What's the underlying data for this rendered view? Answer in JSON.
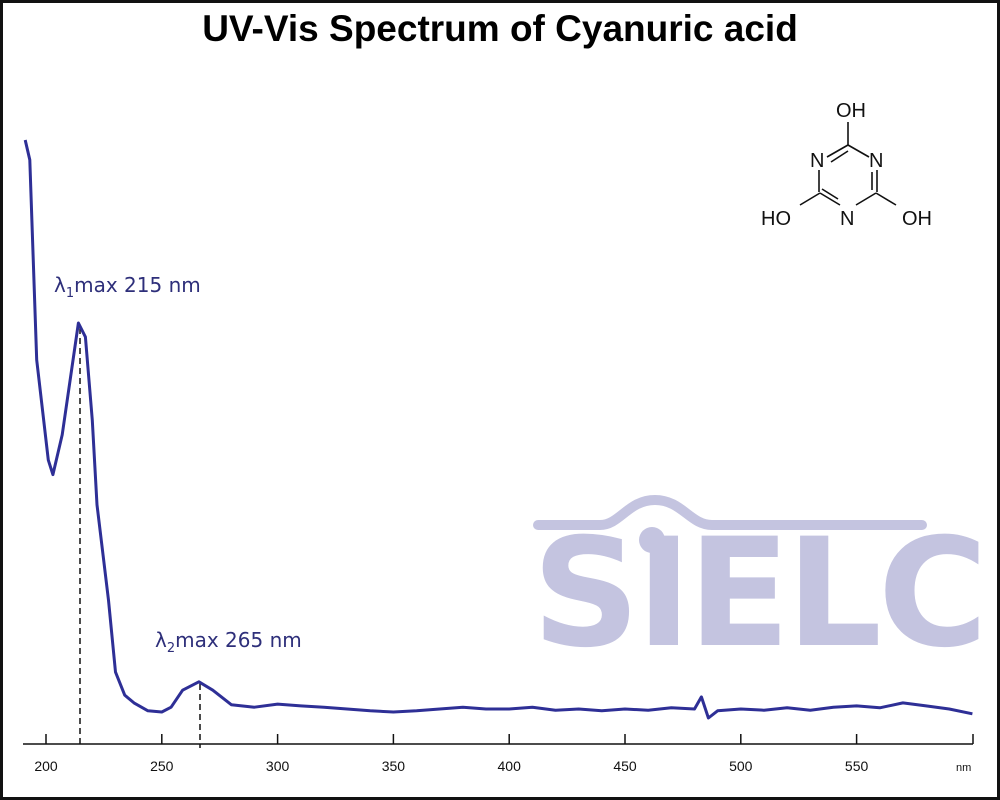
{
  "title": "UV-Vis Spectrum of Cyanuric acid",
  "colors": {
    "line": "#2e2f96",
    "annotation": "#2e2f7a",
    "watermark": "#c4c4e0",
    "axis": "#111111",
    "border": "#111111"
  },
  "x_axis": {
    "ticks": [
      "200",
      "250",
      "300",
      "350",
      "400",
      "450",
      "500",
      "550"
    ],
    "unit": "nm"
  },
  "annotations": {
    "peak1": {
      "lambda": "λ",
      "sub": "1",
      "text": "max  215 nm"
    },
    "peak2": {
      "lambda": "λ",
      "sub": "2",
      "text": "max  265 nm"
    }
  },
  "structure": {
    "name": "Cyanuric acid",
    "labels": {
      "oh_top": "OH",
      "oh_left": "HO",
      "oh_right": "OH",
      "n_left": "N",
      "n_right": "N",
      "n_bottom": "N"
    }
  },
  "watermark": {
    "text": "SIELC"
  },
  "chart_data": {
    "type": "line",
    "title": "UV-Vis Spectrum of Cyanuric acid",
    "xlabel": "nm",
    "ylabel": "",
    "xlim": [
      190,
      600
    ],
    "ylim": [
      0,
      1.0
    ],
    "x_ticks": [
      200,
      250,
      300,
      350,
      400,
      450,
      500,
      550
    ],
    "grid": false,
    "legend": null,
    "annotations": [
      {
        "text": "λ1max 215 nm",
        "x": 215
      },
      {
        "text": "λ2max 265 nm",
        "x": 265
      }
    ],
    "series": [
      {
        "name": "Cyanuric acid",
        "x": [
          191,
          193,
          196,
          201,
          203,
          207,
          214,
          217,
          220,
          222,
          227,
          230,
          234,
          238,
          244,
          250,
          254,
          259,
          266,
          272,
          280,
          290,
          300,
          310,
          320,
          330,
          340,
          350,
          360,
          370,
          380,
          390,
          400,
          410,
          420,
          430,
          440,
          450,
          460,
          470,
          480,
          483,
          486,
          490,
          500,
          510,
          520,
          530,
          540,
          550,
          560,
          570,
          580,
          590,
          600
        ],
        "values": [
          1.0,
          0.967,
          0.636,
          0.47,
          0.446,
          0.512,
          0.697,
          0.674,
          0.536,
          0.396,
          0.238,
          0.119,
          0.081,
          0.068,
          0.055,
          0.053,
          0.061,
          0.089,
          0.103,
          0.089,
          0.065,
          0.061,
          0.066,
          0.063,
          0.061,
          0.058,
          0.055,
          0.053,
          0.055,
          0.058,
          0.061,
          0.058,
          0.058,
          0.061,
          0.056,
          0.058,
          0.055,
          0.058,
          0.056,
          0.06,
          0.058,
          0.078,
          0.043,
          0.055,
          0.058,
          0.056,
          0.06,
          0.056,
          0.061,
          0.063,
          0.06,
          0.068,
          0.063,
          0.058,
          0.05
        ]
      }
    ]
  }
}
